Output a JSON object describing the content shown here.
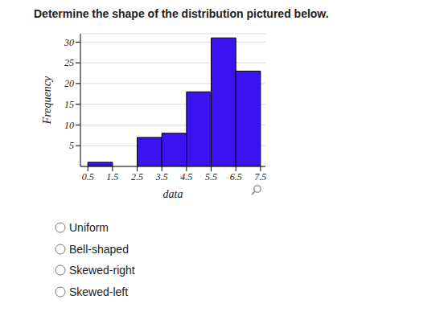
{
  "question": "Determine the shape of the distribution pictured below.",
  "options": [
    "Uniform",
    "Bell-shaped",
    "Skewed-right",
    "Skewed-left"
  ],
  "chart_data": {
    "type": "histogram",
    "bins": [
      0.5,
      1.5,
      2.5,
      3.5,
      4.5,
      5.5,
      6.5,
      7.5
    ],
    "values": [
      1,
      0,
      7,
      8,
      18,
      31,
      23
    ],
    "color": "#3a13f0",
    "xlabel": "data",
    "ylabel": "Frequency",
    "xlim": [
      0.2,
      7.7
    ],
    "ylim": [
      0,
      32
    ],
    "xticks": [
      0.5,
      1.5,
      2.5,
      3.5,
      4.5,
      5.5,
      6.5,
      7.5
    ],
    "yticks": [
      5,
      10,
      15,
      20,
      25,
      30
    ],
    "grid": true
  }
}
